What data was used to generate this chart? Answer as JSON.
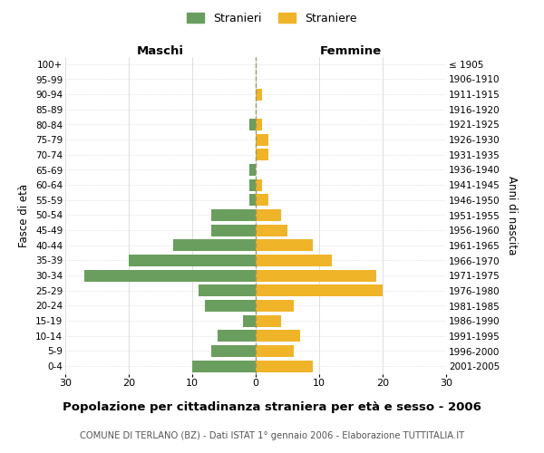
{
  "age_groups": [
    "100+",
    "95-99",
    "90-94",
    "85-89",
    "80-84",
    "75-79",
    "70-74",
    "65-69",
    "60-64",
    "55-59",
    "50-54",
    "45-49",
    "40-44",
    "35-39",
    "30-34",
    "25-29",
    "20-24",
    "15-19",
    "10-14",
    "5-9",
    "0-4"
  ],
  "birth_years": [
    "≤ 1905",
    "1906-1910",
    "1911-1915",
    "1916-1920",
    "1921-1925",
    "1926-1930",
    "1931-1935",
    "1936-1940",
    "1941-1945",
    "1946-1950",
    "1951-1955",
    "1956-1960",
    "1961-1965",
    "1966-1970",
    "1971-1975",
    "1976-1980",
    "1981-1985",
    "1986-1990",
    "1991-1995",
    "1996-2000",
    "2001-2005"
  ],
  "males": [
    0,
    0,
    0,
    0,
    1,
    0,
    0,
    1,
    1,
    1,
    7,
    7,
    13,
    20,
    27,
    9,
    8,
    2,
    6,
    7,
    10
  ],
  "females": [
    0,
    0,
    1,
    0,
    1,
    2,
    2,
    0,
    1,
    2,
    4,
    5,
    9,
    12,
    19,
    20,
    6,
    4,
    7,
    6,
    9
  ],
  "male_color": "#6a9e5e",
  "female_color": "#f0b429",
  "title": "Popolazione per cittadinanza straniera per età e sesso - 2006",
  "subtitle": "COMUNE DI TERLANO (BZ) - Dati ISTAT 1° gennaio 2006 - Elaborazione TUTTITALIA.IT",
  "header_left": "Maschi",
  "header_right": "Femmine",
  "ylabel_left": "Fasce di età",
  "ylabel_right": "Anni di nascita",
  "legend_males": "Stranieri",
  "legend_females": "Straniere",
  "xlim": 30,
  "background_color": "#ffffff",
  "grid_color": "#d0d0d0",
  "dashed_line_color": "#999966"
}
